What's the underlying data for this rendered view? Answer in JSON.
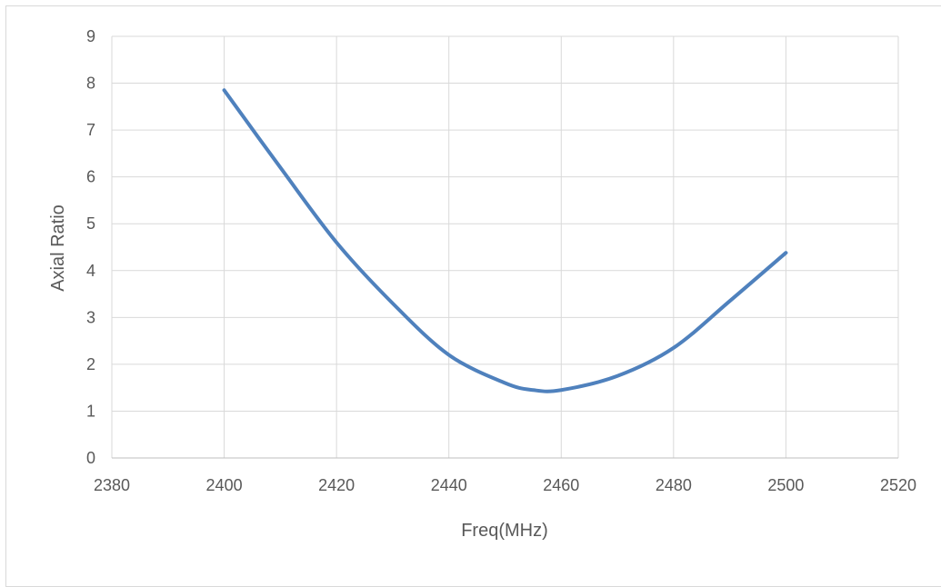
{
  "chart_data": {
    "type": "line",
    "title": "",
    "xlabel": "Freq(MHz)",
    "ylabel": "Axial Ratio",
    "xlim": [
      2380,
      2520
    ],
    "ylim": [
      0,
      9
    ],
    "xticks": [
      2380,
      2400,
      2420,
      2440,
      2460,
      2480,
      2500,
      2520
    ],
    "yticks": [
      0,
      1,
      2,
      3,
      4,
      5,
      6,
      7,
      8,
      9
    ],
    "grid": true,
    "legend": "none",
    "series": [
      {
        "color": "#4f81bd",
        "x": [
          2400,
          2410,
          2420,
          2430,
          2440,
          2450,
          2455,
          2460,
          2470,
          2480,
          2490,
          2500
        ],
        "y": [
          7.85,
          6.2,
          4.6,
          3.3,
          2.2,
          1.6,
          1.45,
          1.45,
          1.75,
          2.35,
          3.35,
          4.38
        ]
      }
    ]
  }
}
